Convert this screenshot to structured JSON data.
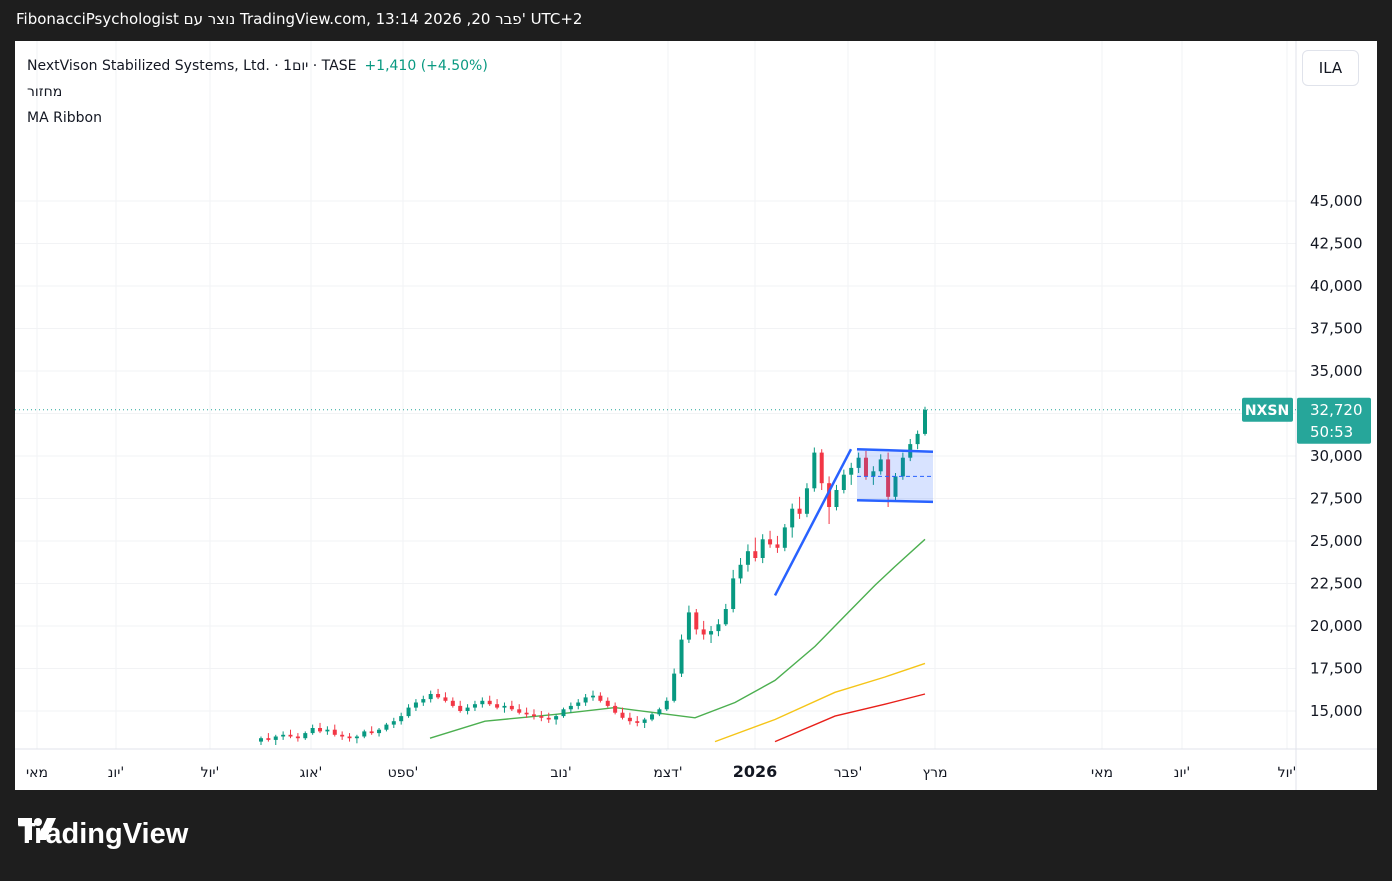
{
  "header": {
    "attribution": "FibonacciPsychologist נוצר עם TradingView.com, 13:14 2026 ,20 פבר' UTC+2"
  },
  "legend": {
    "symbol_line": "NextVison Stabilized Systems, Ltd. · 1יום · TASE",
    "change": "+1,410 (+4.50%)",
    "volume_label": "מחזור",
    "indicator_label": "MA Ribbon"
  },
  "currency_button": "ILA",
  "price_tag": {
    "ticker": "NXSN",
    "price": "32,720",
    "countdown": "50:53"
  },
  "logo": {
    "text": "TradingView"
  },
  "colors": {
    "up": "#089981",
    "down": "#f23645",
    "ma_green": "#4caf50",
    "ma_yellow": "#f5c518",
    "ma_red": "#e8201a",
    "pattern": "#2962ff",
    "tag": "#26a69a"
  },
  "chart_data": {
    "type": "candlestick",
    "y_axis": {
      "ticks": [
        15000,
        17500,
        20000,
        22500,
        25000,
        27500,
        30000,
        32500,
        35000,
        37500,
        40000,
        42500,
        45000
      ],
      "labels": [
        "15,000",
        "17,500",
        "20,000",
        "22,500",
        "25,000",
        "27,500",
        "30,000",
        "",
        "35,000",
        "37,500",
        "40,000",
        "42,500",
        "45,000"
      ]
    },
    "x_axis": {
      "labels": [
        "מאי",
        "יונ'",
        "יול'",
        "אוג'",
        "ספט'",
        "נוב'",
        "דצמ'",
        "2026",
        "פבר'",
        "מרץ",
        "מאי",
        "יונ'",
        "יול'"
      ]
    },
    "last_price": 32720,
    "candles": [
      [
        13200,
        13500,
        13000,
        13400
      ],
      [
        13400,
        13700,
        13200,
        13300
      ],
      [
        13300,
        13600,
        13000,
        13500
      ],
      [
        13500,
        13800,
        13300,
        13600
      ],
      [
        13600,
        13900,
        13400,
        13500
      ],
      [
        13500,
        13700,
        13200,
        13400
      ],
      [
        13400,
        13800,
        13300,
        13700
      ],
      [
        13700,
        14200,
        13600,
        14000
      ],
      [
        14000,
        14300,
        13700,
        13800
      ],
      [
        13800,
        14100,
        13600,
        13900
      ],
      [
        13900,
        14200,
        13500,
        13600
      ],
      [
        13600,
        13800,
        13300,
        13500
      ],
      [
        13500,
        13700,
        13200,
        13400
      ],
      [
        13400,
        13600,
        13100,
        13500
      ],
      [
        13500,
        13900,
        13400,
        13800
      ],
      [
        13800,
        14100,
        13600,
        13700
      ],
      [
        13700,
        14000,
        13500,
        13900
      ],
      [
        13900,
        14300,
        13800,
        14200
      ],
      [
        14200,
        14600,
        14000,
        14400
      ],
      [
        14400,
        14900,
        14200,
        14700
      ],
      [
        14700,
        15400,
        14600,
        15200
      ],
      [
        15200,
        15700,
        15000,
        15500
      ],
      [
        15500,
        15900,
        15300,
        15700
      ],
      [
        15700,
        16200,
        15500,
        16000
      ],
      [
        16000,
        16300,
        15700,
        15800
      ],
      [
        15800,
        16100,
        15500,
        15600
      ],
      [
        15600,
        15800,
        15200,
        15300
      ],
      [
        15300,
        15600,
        14900,
        15000
      ],
      [
        15000,
        15400,
        14800,
        15200
      ],
      [
        15200,
        15600,
        15000,
        15400
      ],
      [
        15400,
        15800,
        15200,
        15600
      ],
      [
        15600,
        15900,
        15300,
        15400
      ],
      [
        15400,
        15700,
        15100,
        15200
      ],
      [
        15200,
        15500,
        14900,
        15300
      ],
      [
        15300,
        15600,
        15000,
        15100
      ],
      [
        15100,
        15400,
        14800,
        14900
      ],
      [
        14900,
        15200,
        14600,
        14800
      ],
      [
        14800,
        15100,
        14500,
        14700
      ],
      [
        14700,
        15000,
        14400,
        14600
      ],
      [
        14600,
        14900,
        14300,
        14500
      ],
      [
        14500,
        14800,
        14200,
        14700
      ],
      [
        14700,
        15200,
        14600,
        15100
      ],
      [
        15100,
        15500,
        14900,
        15300
      ],
      [
        15300,
        15700,
        15100,
        15500
      ],
      [
        15500,
        16000,
        15300,
        15800
      ],
      [
        15800,
        16200,
        15600,
        15900
      ],
      [
        15900,
        16100,
        15500,
        15600
      ],
      [
        15600,
        15800,
        15200,
        15300
      ],
      [
        15300,
        15500,
        14800,
        14900
      ],
      [
        14900,
        15200,
        14500,
        14600
      ],
      [
        14600,
        14900,
        14200,
        14400
      ],
      [
        14400,
        14700,
        14100,
        14300
      ],
      [
        14300,
        14600,
        14000,
        14500
      ],
      [
        14500,
        14900,
        14400,
        14800
      ],
      [
        14800,
        15200,
        14700,
        15100
      ],
      [
        15100,
        15800,
        15000,
        15600
      ],
      [
        15600,
        17500,
        15500,
        17200
      ],
      [
        17200,
        19500,
        17000,
        19200
      ],
      [
        19200,
        21200,
        19000,
        20800
      ],
      [
        20800,
        21000,
        19500,
        19800
      ],
      [
        19800,
        20300,
        19200,
        19500
      ],
      [
        19500,
        20000,
        19000,
        19700
      ],
      [
        19700,
        20400,
        19400,
        20100
      ],
      [
        20100,
        21300,
        20000,
        21000
      ],
      [
        21000,
        23300,
        20800,
        22800
      ],
      [
        22800,
        24000,
        22500,
        23600
      ],
      [
        23600,
        24800,
        23200,
        24400
      ],
      [
        24400,
        25200,
        23800,
        24000
      ],
      [
        24000,
        25400,
        23700,
        25100
      ],
      [
        25100,
        25600,
        24600,
        24800
      ],
      [
        24800,
        25300,
        24300,
        24600
      ],
      [
        24600,
        26000,
        24400,
        25800
      ],
      [
        25800,
        27200,
        25200,
        26900
      ],
      [
        26900,
        27600,
        26300,
        26600
      ],
      [
        26600,
        28400,
        26400,
        28100
      ],
      [
        28100,
        30500,
        27900,
        30200
      ],
      [
        30200,
        30400,
        28000,
        28400
      ],
      [
        28400,
        28800,
        26000,
        27000
      ],
      [
        27000,
        28300,
        26800,
        28000
      ],
      [
        28000,
        29200,
        27800,
        28900
      ],
      [
        28900,
        29600,
        28300,
        29300
      ],
      [
        29300,
        30200,
        29000,
        29900
      ],
      [
        29900,
        30300,
        28600,
        28800
      ],
      [
        28800,
        29400,
        28300,
        29100
      ],
      [
        29100,
        30100,
        28900,
        29800
      ],
      [
        29800,
        30200,
        27000,
        27600
      ],
      [
        27600,
        29000,
        27400,
        28800
      ],
      [
        28800,
        30200,
        28600,
        29900
      ],
      [
        29900,
        31000,
        29700,
        30700
      ],
      [
        30700,
        31500,
        30400,
        31300
      ],
      [
        31300,
        32900,
        31200,
        32720
      ]
    ],
    "moving_averages": [
      {
        "color": "green",
        "x": [
          415,
          470,
          540,
          600,
          640,
          680,
          720,
          760,
          800,
          830,
          860,
          880,
          910
        ],
        "y": [
          13400,
          14400,
          14800,
          15200,
          14900,
          14600,
          15500,
          16800,
          18800,
          20600,
          22400,
          23500,
          25100
        ]
      },
      {
        "color": "yellow",
        "x": [
          700,
          760,
          820,
          870,
          910
        ],
        "y": [
          13200,
          14500,
          16100,
          17000,
          17800
        ]
      },
      {
        "color": "red",
        "x": [
          760,
          820,
          870,
          910
        ],
        "y": [
          13200,
          14700,
          15400,
          16000
        ]
      }
    ],
    "pattern": {
      "type": "bull-flag",
      "pole": [
        [
          760,
          21800
        ],
        [
          836,
          30400
        ]
      ],
      "flag_top": [
        [
          842,
          30400
        ],
        [
          918,
          30250
        ]
      ],
      "flag_bottom": [
        [
          842,
          27400
        ],
        [
          918,
          27300
        ]
      ],
      "mid": [
        [
          842,
          28800
        ],
        [
          918,
          28800
        ]
      ]
    }
  }
}
